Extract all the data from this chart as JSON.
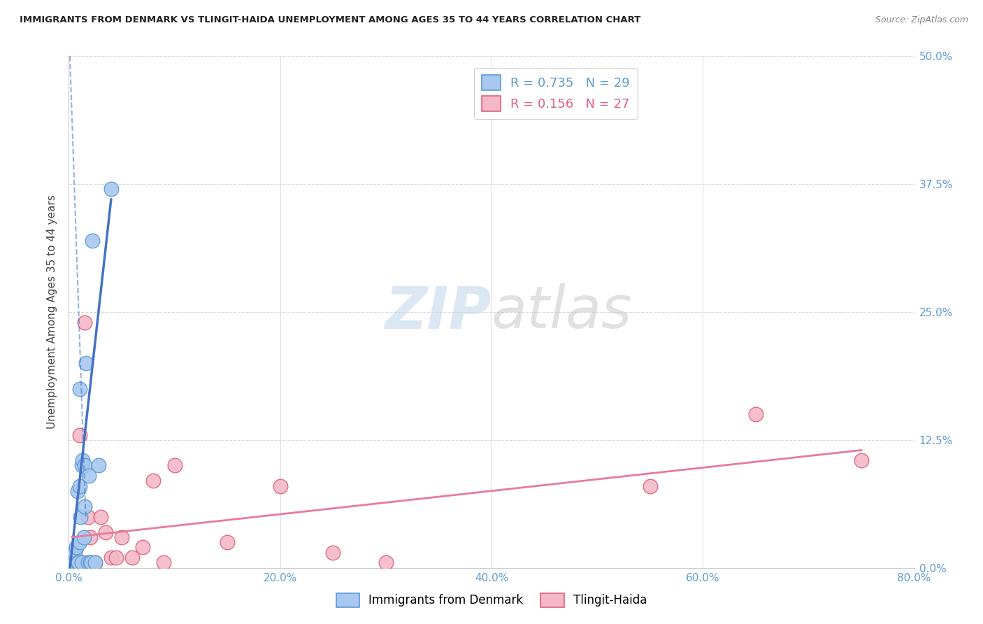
{
  "title": "IMMIGRANTS FROM DENMARK VS TLINGIT-HAIDA UNEMPLOYMENT AMONG AGES 35 TO 44 YEARS CORRELATION CHART",
  "source": "Source: ZipAtlas.com",
  "xlabel_ticks": [
    "0.0%",
    "20.0%",
    "40.0%",
    "60.0%",
    "80.0%"
  ],
  "xlabel_tick_vals": [
    0.0,
    20.0,
    40.0,
    60.0,
    80.0
  ],
  "ylabel": "Unemployment Among Ages 35 to 44 years",
  "ylabel_ticks": [
    "0.0%",
    "12.5%",
    "25.0%",
    "37.5%",
    "50.0%"
  ],
  "ylabel_tick_vals": [
    0.0,
    12.5,
    25.0,
    37.5,
    50.0
  ],
  "xlim": [
    0,
    80
  ],
  "ylim": [
    0,
    50
  ],
  "blue_color": "#a8c8f0",
  "blue_edge_color": "#5b9bd5",
  "pink_color": "#f4b8c8",
  "pink_edge_color": "#e06080",
  "blue_line_color": "#4472c4",
  "pink_line_color": "#e87a9a",
  "legend_blue_R": "0.735",
  "legend_blue_N": "29",
  "legend_pink_R": "0.156",
  "legend_pink_N": "27",
  "legend_blue_label": "Immigrants from Denmark",
  "legend_pink_label": "Tlingit-Haida",
  "blue_scatter_x": [
    0.3,
    0.4,
    0.5,
    0.5,
    0.6,
    0.6,
    0.7,
    0.8,
    0.8,
    0.9,
    1.0,
    1.0,
    1.0,
    1.1,
    1.2,
    1.2,
    1.3,
    1.4,
    1.5,
    1.5,
    1.6,
    1.8,
    1.9,
    2.0,
    2.1,
    2.2,
    2.5,
    2.8,
    4.0
  ],
  "blue_scatter_y": [
    0.5,
    0.5,
    0.5,
    1.0,
    0.5,
    1.5,
    2.0,
    0.5,
    7.5,
    0.5,
    2.5,
    8.0,
    17.5,
    5.0,
    0.5,
    10.0,
    10.5,
    3.0,
    6.0,
    10.0,
    20.0,
    0.5,
    9.0,
    0.5,
    0.5,
    32.0,
    0.5,
    10.0,
    37.0
  ],
  "pink_scatter_x": [
    0.3,
    0.5,
    0.8,
    1.0,
    1.0,
    1.2,
    1.5,
    1.8,
    2.0,
    2.5,
    3.0,
    3.5,
    4.0,
    4.5,
    5.0,
    6.0,
    7.0,
    8.0,
    9.0,
    10.0,
    15.0,
    20.0,
    25.0,
    30.0,
    55.0,
    65.0,
    75.0
  ],
  "pink_scatter_y": [
    1.0,
    1.5,
    0.5,
    0.5,
    13.0,
    0.5,
    24.0,
    5.0,
    3.0,
    0.5,
    5.0,
    3.5,
    1.0,
    1.0,
    3.0,
    1.0,
    2.0,
    8.5,
    0.5,
    10.0,
    2.5,
    8.0,
    1.5,
    0.5,
    8.0,
    15.0,
    10.5
  ],
  "blue_trend_x1": 0.1,
  "blue_trend_y1": 0.0,
  "blue_trend_x2": 4.0,
  "blue_trend_y2": 36.0,
  "blue_dash_x1": 0.1,
  "blue_dash_y1": 50.0,
  "blue_dash_x2": 1.6,
  "blue_dash_y2": 5.0,
  "pink_trend_x1": 0.3,
  "pink_trend_y1": 3.0,
  "pink_trend_x2": 75.0,
  "pink_trend_y2": 11.5,
  "watermark_zip": "ZIP",
  "watermark_atlas": "atlas",
  "background_color": "#ffffff",
  "grid_color": "#d8d8d8",
  "title_color": "#222222",
  "source_color": "#888888",
  "tick_color": "#5b9bd5",
  "ylabel_color": "#444444",
  "watermark_color_zip": "#c5d8ee",
  "watermark_color_atlas": "#c5c5c5"
}
